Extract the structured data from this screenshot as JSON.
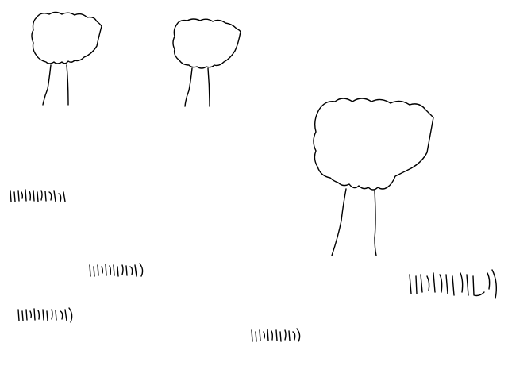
{
  "scene": {
    "background_color": "#ffffff",
    "line_color": "#000000",
    "tree_count": 3,
    "grass_tuft_count": 5
  }
}
